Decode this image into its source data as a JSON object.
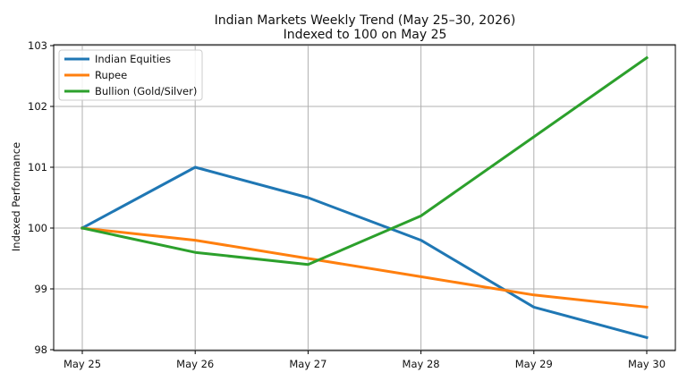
{
  "chart_data": {
    "type": "line",
    "title": "Indian Markets Weekly Trend (May 25–30, 2026)",
    "subtitle": "Indexed to 100 on May 25",
    "xlabel": "",
    "ylabel": "Indexed Performance",
    "categories": [
      "May 25",
      "May 26",
      "May 27",
      "May 28",
      "May 29",
      "May 30"
    ],
    "ylim": [
      98,
      103
    ],
    "yticks": [
      "98",
      "99",
      "100",
      "101",
      "102",
      "103"
    ],
    "grid": true,
    "legend_position": "top-left",
    "series": [
      {
        "name": "Indian Equities",
        "color": "#1f77b4",
        "values": [
          100.0,
          101.0,
          100.5,
          99.8,
          98.7,
          98.2
        ]
      },
      {
        "name": "Rupee",
        "color": "#ff7f0e",
        "values": [
          100.0,
          99.8,
          99.5,
          99.2,
          98.9,
          98.7
        ]
      },
      {
        "name": "Bullion (Gold/Silver)",
        "color": "#2ca02c",
        "values": [
          100.0,
          99.6,
          99.4,
          100.2,
          101.5,
          102.8
        ]
      }
    ]
  }
}
